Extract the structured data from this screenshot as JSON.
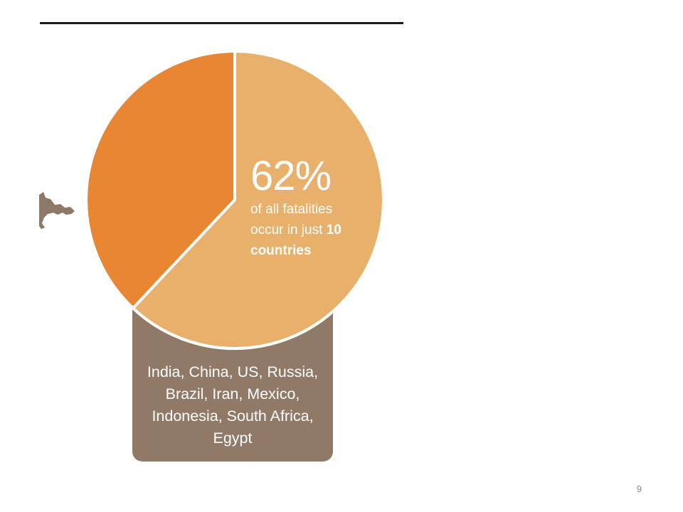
{
  "chart_data": {
    "type": "pie",
    "slices": [
      {
        "value": 62,
        "color": "#e8b06a"
      },
      {
        "value": 38,
        "color": "#e88634"
      }
    ],
    "annotation": {
      "percent": "62%",
      "line1": "of all fatalities",
      "line2_prefix": "occur in just",
      "line2_bold": "10",
      "line3_bold": "countries"
    },
    "countries": [
      "India, China, US, Russia,",
      "Brazil, Iran, Mexico,",
      "Indonesia, South Africa,",
      "Egypt"
    ]
  },
  "colors": {
    "rule": "#1a1a1a",
    "box": "#917967",
    "map": "#8e7868",
    "text_on_chart": "#ffffff"
  },
  "page_number": "9"
}
